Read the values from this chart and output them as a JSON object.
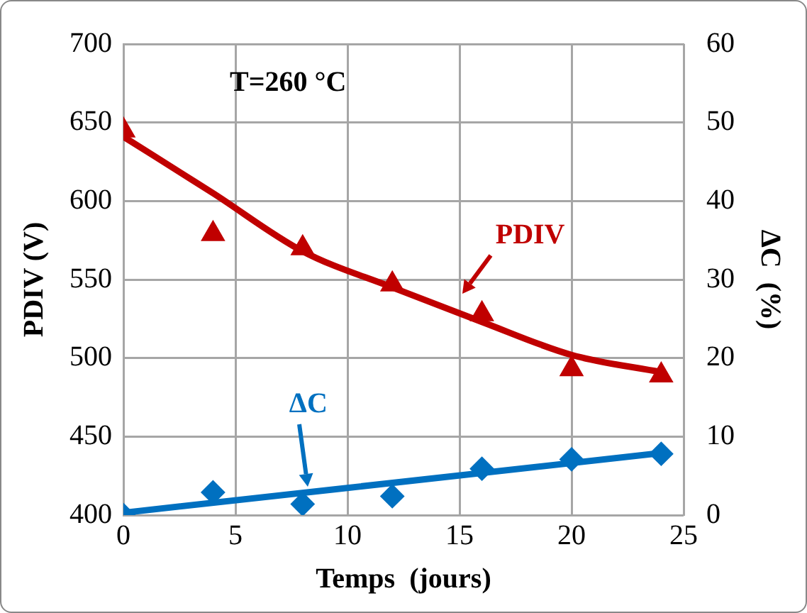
{
  "chart_data": {
    "type": "scatter",
    "xlabel": "Temps  (jours)",
    "ylabel": "PDIV (V)",
    "y2label": "ΔC  (%)",
    "xlim": [
      0,
      25
    ],
    "xticks": [
      0,
      5,
      10,
      15,
      20,
      25
    ],
    "ylim": [
      400,
      700
    ],
    "yticks": [
      400,
      450,
      500,
      550,
      600,
      650,
      700
    ],
    "y2lim": [
      0,
      60
    ],
    "y2ticks": [
      0,
      10,
      20,
      30,
      40,
      50,
      60
    ],
    "grid": true,
    "legend": false,
    "annotations": [
      "T=260 °C"
    ],
    "series": [
      {
        "name": "PDIV",
        "type": "scatter",
        "marker": "triangle",
        "color": "#c00000",
        "x": [
          0,
          4,
          8,
          12,
          16,
          20,
          24
        ],
        "values": [
          645,
          579,
          570,
          547,
          528,
          493,
          489
        ]
      },
      {
        "type": "line",
        "marker": "none",
        "color": "#c00000",
        "x": [
          0,
          4,
          8,
          12,
          16,
          20,
          24
        ],
        "values": [
          641,
          605,
          568,
          545,
          523,
          502,
          491
        ]
      },
      {
        "name": "ΔC",
        "type": "scatter",
        "marker": "diamond",
        "axis": "y2",
        "color": "#0070c0",
        "x": [
          0,
          4,
          8,
          12,
          16,
          20,
          24
        ],
        "values": [
          0,
          2.9,
          1.4,
          2.4,
          5.9,
          7.1,
          7.8
        ]
      },
      {
        "type": "line",
        "marker": "none",
        "axis": "y2",
        "color": "#0070c0",
        "x": [
          0,
          24
        ],
        "values": [
          0.3,
          7.9
        ]
      }
    ]
  }
}
